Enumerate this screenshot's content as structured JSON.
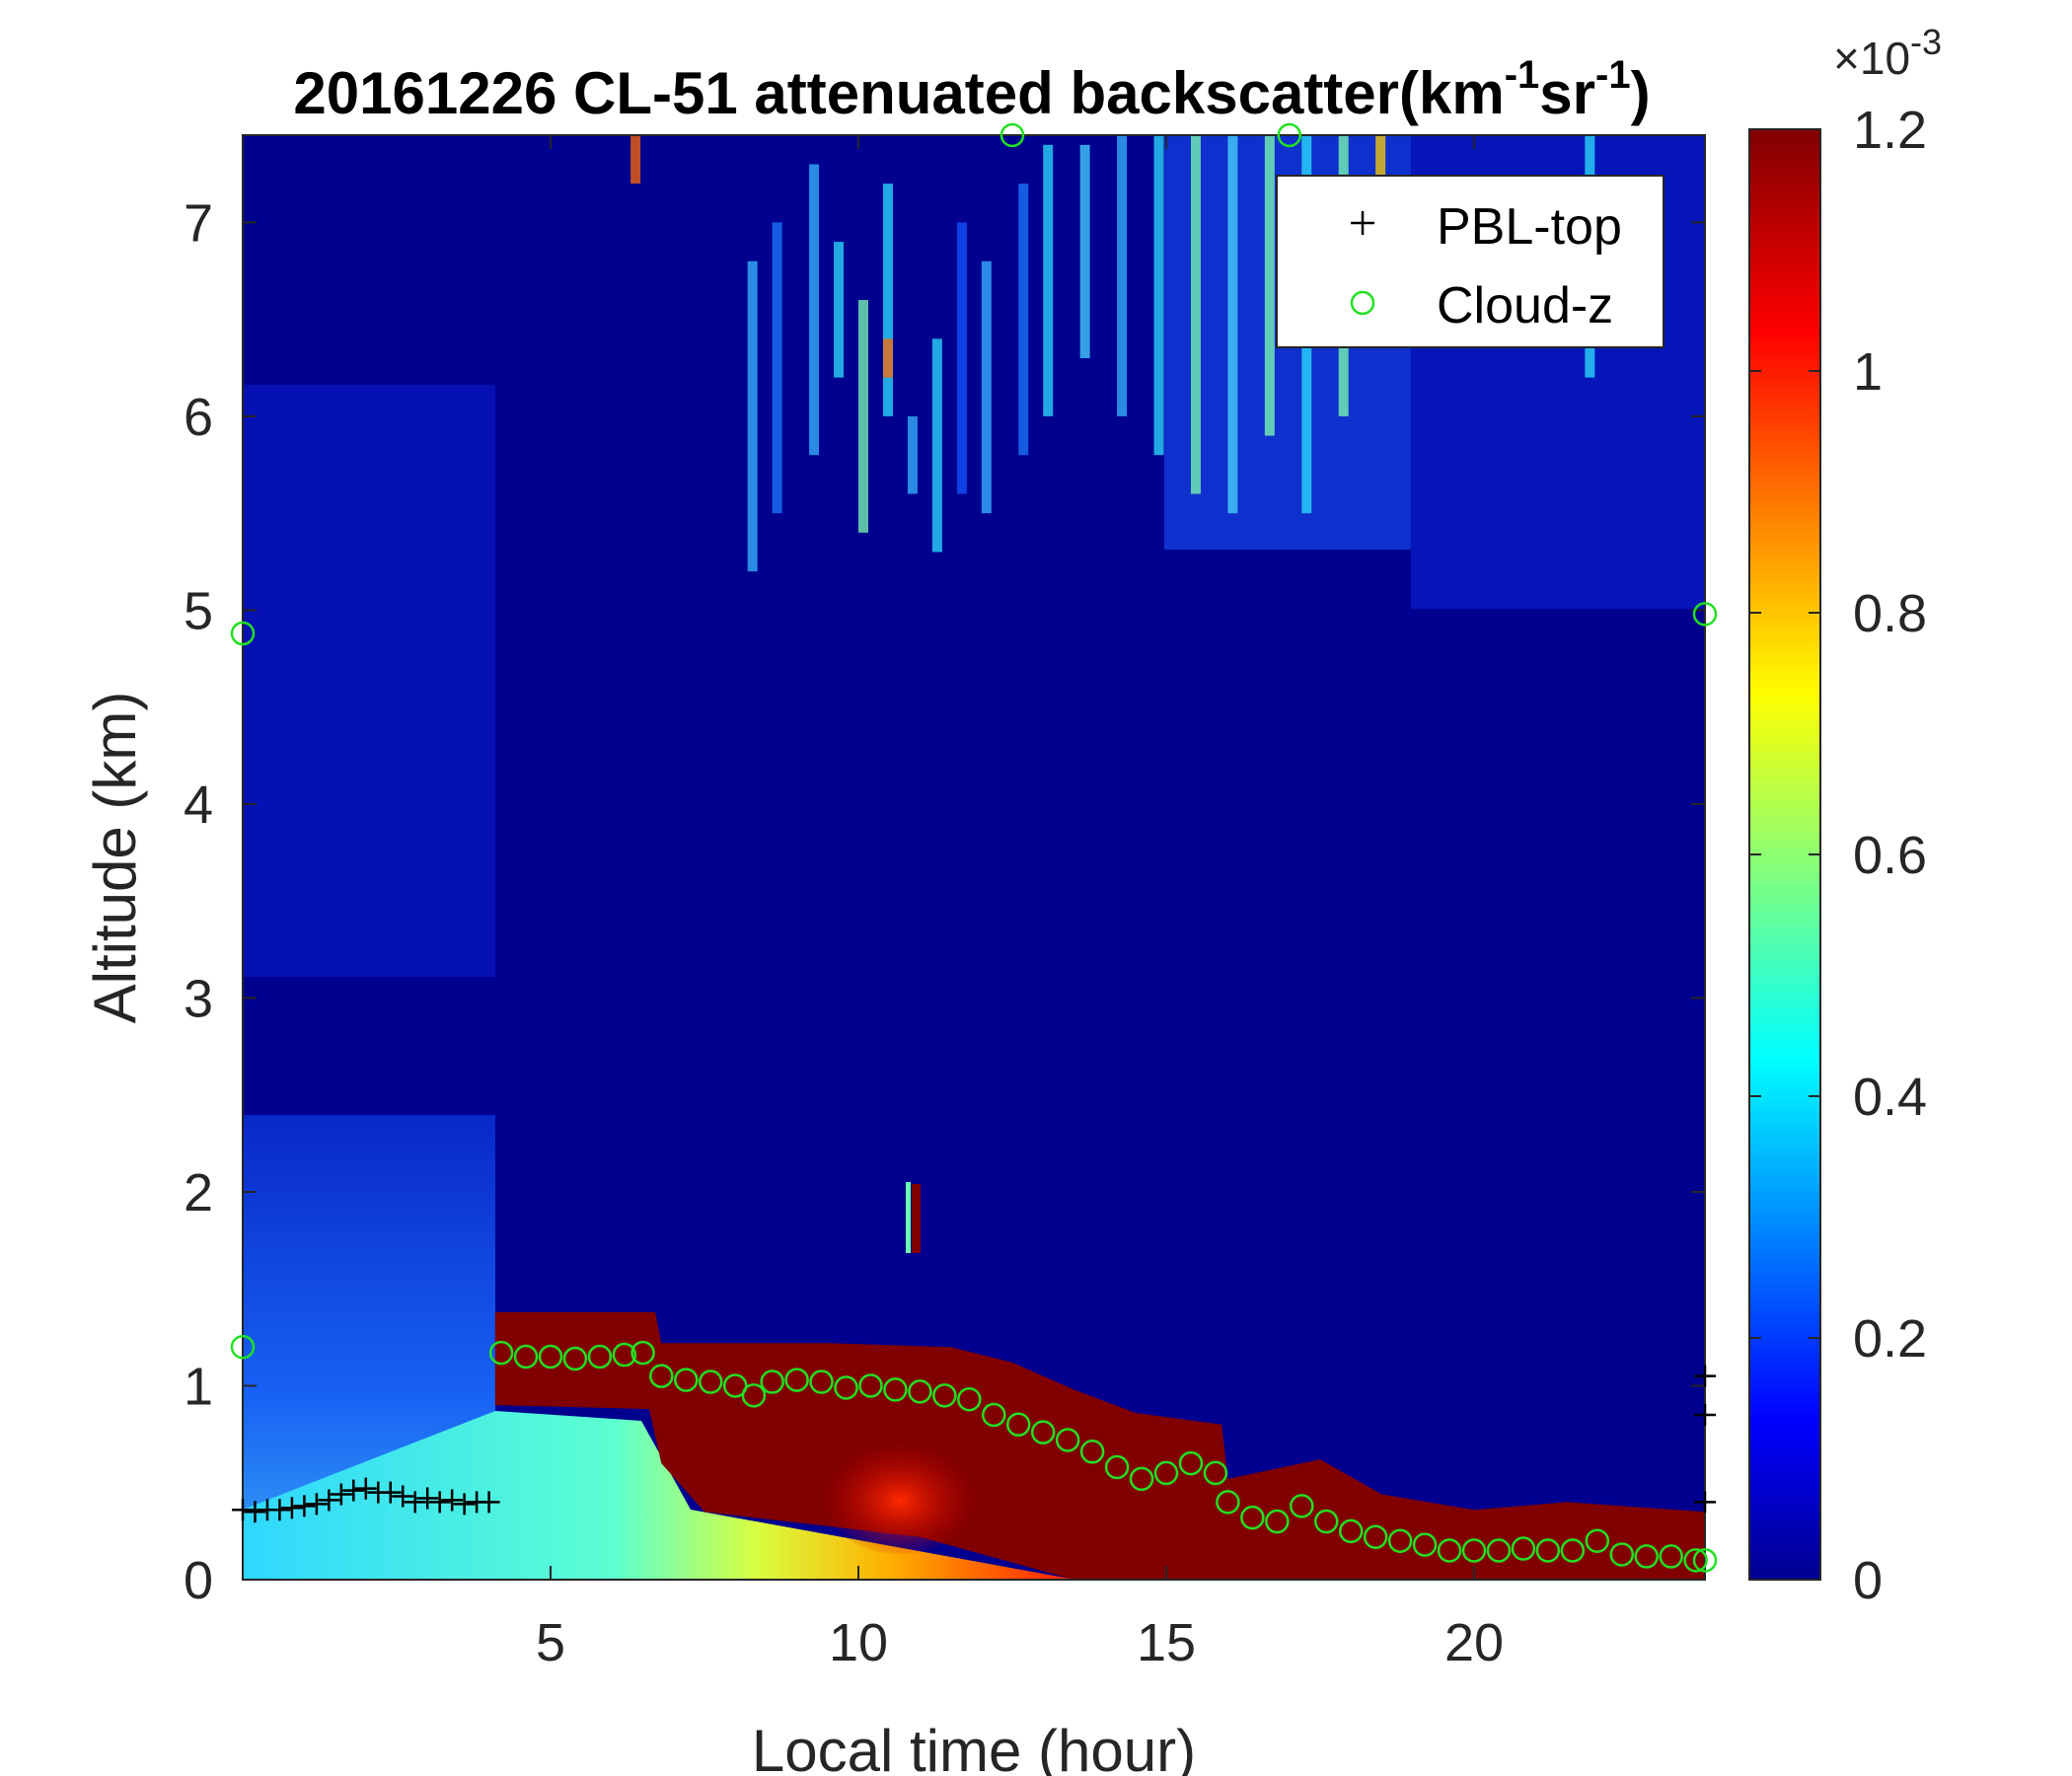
{
  "chart_data": {
    "type": "heatmap",
    "title": {
      "date": "20161226",
      "main": "CL-51 attenuated backscatter(km",
      "sup1": "-1",
      "mid": "sr",
      "sup2": "-1",
      "end": ")"
    },
    "xlabel": "Local time (hour)",
    "ylabel": "Altitude (km)",
    "xlim": [
      0,
      23.75
    ],
    "ylim": [
      0,
      7.45
    ],
    "xticks": [
      5,
      10,
      15,
      20
    ],
    "yticks": [
      0,
      1,
      2,
      3,
      4,
      5,
      6,
      7
    ],
    "colormap": "jet",
    "colorbar": {
      "clim": [
        0,
        0.0012
      ],
      "ticks": [
        0,
        0.2,
        0.4,
        0.6,
        0.8,
        1,
        1.2
      ],
      "tick_labels": [
        "0",
        "0.2",
        "0.4",
        "0.6",
        "0.8",
        "1",
        "1.2"
      ],
      "exponent_base": "×10",
      "exponent_power": "-3"
    },
    "legend": {
      "position": "top-right",
      "entries": [
        {
          "label": "PBL-top",
          "marker": "+",
          "color": "#000000"
        },
        {
          "label": "Cloud-z",
          "marker": "o",
          "color": "#22e022"
        }
      ]
    },
    "pbl_top": {
      "x": [
        0.0,
        0.2,
        0.4,
        0.6,
        0.8,
        1.0,
        1.2,
        1.4,
        1.6,
        1.8,
        2.0,
        2.2,
        2.4,
        2.6,
        2.8,
        3.0,
        3.2,
        3.4,
        3.6,
        3.8,
        4.0,
        23.75,
        23.75,
        23.75
      ],
      "y": [
        0.36,
        0.35,
        0.36,
        0.36,
        0.37,
        0.38,
        0.39,
        0.41,
        0.44,
        0.46,
        0.47,
        0.45,
        0.45,
        0.43,
        0.4,
        0.42,
        0.4,
        0.41,
        0.39,
        0.4,
        0.4,
        0.4,
        0.85,
        1.05
      ]
    },
    "cloud_z": {
      "x": [
        0.0,
        0.0,
        4.2,
        4.6,
        5.0,
        5.4,
        5.8,
        6.2,
        6.5,
        6.8,
        7.2,
        7.6,
        8.0,
        8.3,
        8.6,
        9.0,
        9.4,
        9.8,
        10.2,
        10.6,
        11.0,
        11.4,
        11.8,
        12.2,
        12.6,
        13.0,
        13.4,
        13.8,
        14.2,
        14.6,
        15.0,
        15.4,
        15.8,
        16.0,
        16.4,
        16.8,
        17.2,
        17.6,
        18.0,
        18.4,
        18.8,
        19.2,
        19.6,
        20.0,
        20.4,
        20.8,
        21.2,
        21.6,
        22.0,
        22.4,
        22.8,
        23.2,
        23.6,
        23.75,
        23.75,
        12.5,
        17.0
      ],
      "y": [
        4.88,
        1.2,
        1.17,
        1.15,
        1.15,
        1.14,
        1.15,
        1.16,
        1.17,
        1.05,
        1.03,
        1.02,
        1.0,
        0.95,
        1.02,
        1.03,
        1.02,
        0.99,
        1.0,
        0.98,
        0.97,
        0.95,
        0.93,
        0.85,
        0.8,
        0.76,
        0.72,
        0.66,
        0.58,
        0.52,
        0.55,
        0.6,
        0.55,
        0.4,
        0.32,
        0.3,
        0.38,
        0.3,
        0.25,
        0.22,
        0.2,
        0.18,
        0.15,
        0.15,
        0.15,
        0.16,
        0.15,
        0.15,
        0.2,
        0.13,
        0.12,
        0.12,
        0.1,
        0.1,
        4.98,
        7.45,
        7.45
      ]
    },
    "backscatter_features": [
      {
        "name": "boundary layer cloud top",
        "x": [
          4.1,
          23.75
        ],
        "y_top_km": [
          1.38,
          0.35
        ],
        "value": 0.0012
      },
      {
        "name": "surface aerosol layer",
        "x": [
          0,
          13.5
        ],
        "y": [
          0,
          0.9
        ],
        "value": 0.0005
      },
      {
        "name": "mid-level cloud streak",
        "x": 11.0,
        "y": [
          1.7,
          2.0
        ],
        "value": 0.0012
      },
      {
        "name": "upper cirrus",
        "x": [
          8,
          19
        ],
        "y": [
          5.0,
          7.45
        ],
        "value": 0.0004
      }
    ]
  }
}
